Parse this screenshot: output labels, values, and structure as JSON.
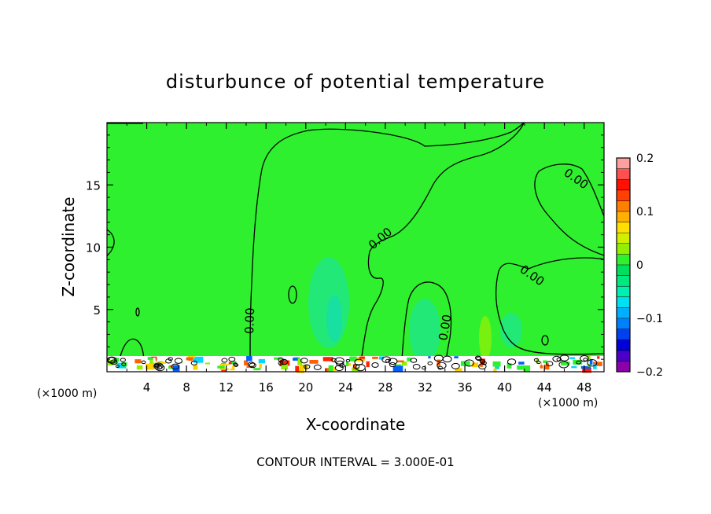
{
  "chart_data": {
    "type": "heatmap",
    "title": "disturbunce of potential temperature",
    "xlabel": "X-coordinate",
    "ylabel": "Z-coordinate",
    "x_unit_left": "(×1000 m)",
    "x_unit_right": "(×1000 m)",
    "xlim": [
      0,
      50
    ],
    "ylim": [
      0,
      20
    ],
    "x_ticks": [
      4,
      8,
      12,
      16,
      20,
      24,
      28,
      32,
      36,
      40,
      44,
      48
    ],
    "y_ticks": [
      5,
      10,
      15
    ],
    "grid": false,
    "footer": "CONTOUR INTERVAL = 3.000E-01",
    "colorbar": {
      "placement": "right",
      "range": [
        -0.2,
        0.2
      ],
      "tick_values": [
        0.2,
        0.1,
        0,
        -0.1,
        -0.2
      ],
      "tick_labels": [
        "0.2",
        "0.1",
        "0",
        "−0.1",
        "−0.2"
      ],
      "colors": [
        "#8b00a8",
        "#4b00c8",
        "#0000d8",
        "#0040f0",
        "#0080ff",
        "#00b0ff",
        "#00e0f0",
        "#00f0b0",
        "#00e880",
        "#00e060",
        "#30f030",
        "#90f000",
        "#d0f000",
        "#ffe000",
        "#ffb000",
        "#ff8000",
        "#ff4000",
        "#ff1000",
        "#ff5050",
        "#ffa0a0"
      ]
    },
    "contour_labels": [
      "0.00",
      "0.00",
      "0.00",
      "0.00",
      "0.00"
    ],
    "background_value": 0
  }
}
